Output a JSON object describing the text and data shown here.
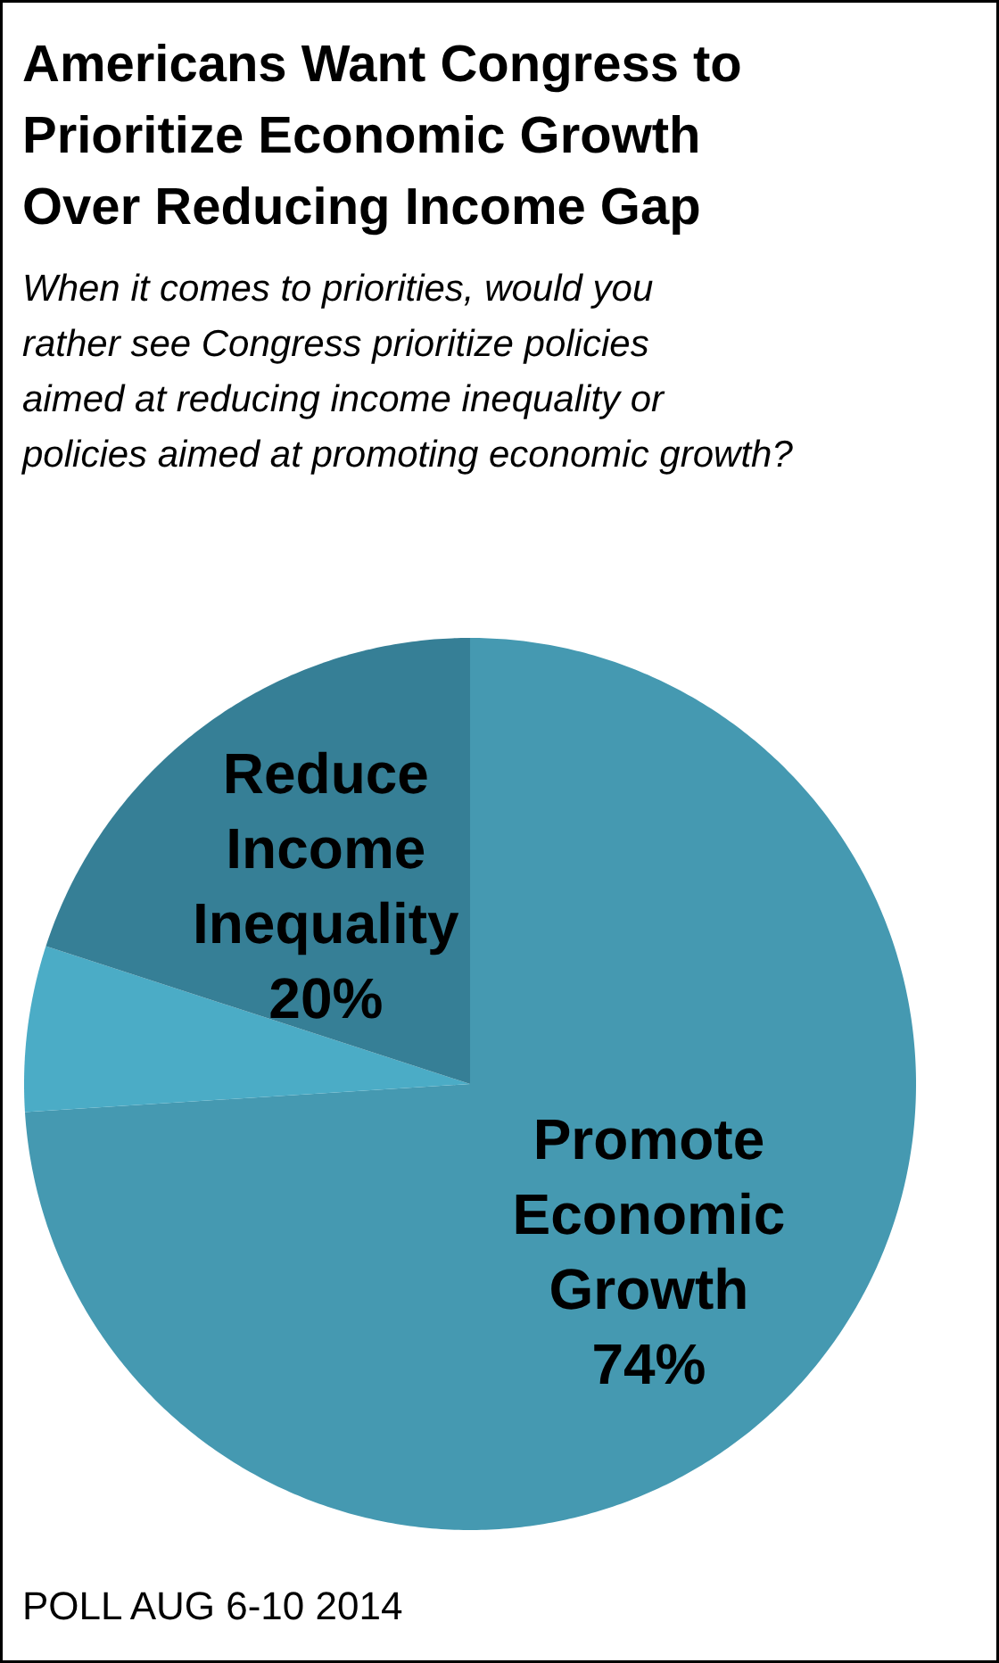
{
  "chart_data": {
    "type": "pie",
    "title": "Americans Want Congress to Prioritize Economic Growth Over Reducing Income Gap",
    "subtitle": "When it comes to priorities, would you rather see Congress prioritize policies aimed at reducing income inequality or policies aimed at promoting economic growth?",
    "categories": [
      "Promote Economic Growth",
      null,
      "Reduce Income Inequality"
    ],
    "values": [
      74,
      6,
      20
    ],
    "colors": [
      "#4599b1",
      "#4bacc6",
      "#367f96"
    ],
    "value_labels": [
      "74%",
      null,
      "20%"
    ],
    "annotations": [
      "POLL AUG 6-10 2014"
    ]
  }
}
